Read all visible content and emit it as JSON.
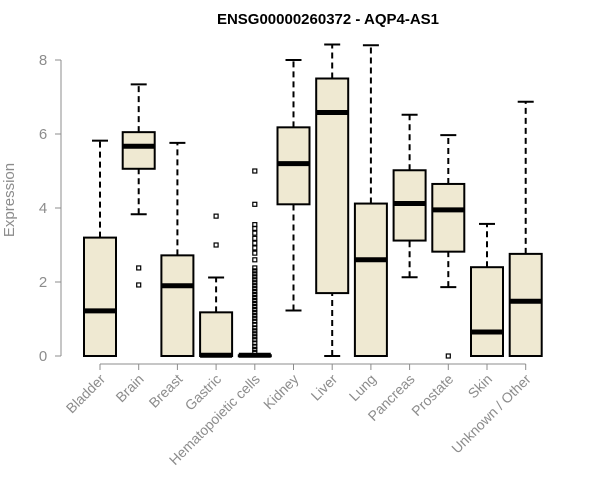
{
  "chart_data": {
    "type": "boxplot",
    "title": "ENSG00000260372 - AQP4-AS1",
    "xlabel": "",
    "ylabel": "Expression",
    "ylim": [
      0,
      8.5
    ],
    "yticks": [
      0,
      2,
      4,
      6,
      8
    ],
    "categories": [
      "Bladder",
      "Brain",
      "Breast",
      "Gastric",
      "Hematopoietic cells",
      "Kidney",
      "Liver",
      "Lung",
      "Pancreas",
      "Prostate",
      "Skin",
      "Unknown / Other"
    ],
    "box_fill": "#efe9d2",
    "stroke": "#000000",
    "boxes": [
      {
        "name": "Bladder",
        "min": 0,
        "q1": 0,
        "median": 1.22,
        "q3": 3.2,
        "max": 5.82,
        "outliers": []
      },
      {
        "name": "Brain",
        "min": 3.83,
        "q1": 5.06,
        "median": 5.67,
        "q3": 6.05,
        "max": 7.34,
        "outliers": [
          2.38,
          1.92
        ]
      },
      {
        "name": "Breast",
        "min": 0,
        "q1": 0,
        "median": 1.9,
        "q3": 2.72,
        "max": 5.76,
        "outliers": []
      },
      {
        "name": "Gastric",
        "min": 0,
        "q1": 0,
        "median": 0.02,
        "q3": 1.18,
        "max": 2.12,
        "outliers": [
          3.0,
          3.78
        ]
      },
      {
        "name": "Hematopoietic cells",
        "min": 0,
        "q1": 0,
        "median": 0.02,
        "q3": 0.02,
        "max": 0.05,
        "outliers": [
          0.1,
          0.18,
          0.26,
          0.35,
          0.44,
          0.52,
          0.6,
          0.68,
          0.76,
          0.85,
          0.94,
          1.02,
          1.1,
          1.18,
          1.26,
          1.34,
          1.42,
          1.5,
          1.58,
          1.66,
          1.74,
          1.82,
          1.9,
          1.98,
          2.06,
          2.14,
          2.22,
          2.3,
          2.38,
          2.6,
          2.78,
          2.92,
          3.05,
          3.18,
          3.32,
          3.45,
          3.55,
          4.1,
          5.0
        ]
      },
      {
        "name": "Kidney",
        "min": 1.23,
        "q1": 4.1,
        "median": 5.2,
        "q3": 6.18,
        "max": 8.0,
        "outliers": []
      },
      {
        "name": "Liver",
        "min": 0,
        "q1": 1.7,
        "median": 6.58,
        "q3": 7.5,
        "max": 8.42,
        "outliers": []
      },
      {
        "name": "Lung",
        "min": 0,
        "q1": 0,
        "median": 2.6,
        "q3": 4.12,
        "max": 8.4,
        "outliers": []
      },
      {
        "name": "Pancreas",
        "min": 2.13,
        "q1": 3.12,
        "median": 4.12,
        "q3": 5.02,
        "max": 6.52,
        "outliers": []
      },
      {
        "name": "Prostate",
        "min": 1.86,
        "q1": 2.82,
        "median": 3.95,
        "q3": 4.65,
        "max": 5.97,
        "outliers": [
          0
        ]
      },
      {
        "name": "Skin",
        "min": 0,
        "q1": 0,
        "median": 0.65,
        "q3": 2.4,
        "max": 3.57,
        "outliers": []
      },
      {
        "name": "Unknown / Other",
        "min": 0,
        "q1": 0,
        "median": 1.48,
        "q3": 2.76,
        "max": 6.87,
        "outliers": []
      }
    ]
  }
}
